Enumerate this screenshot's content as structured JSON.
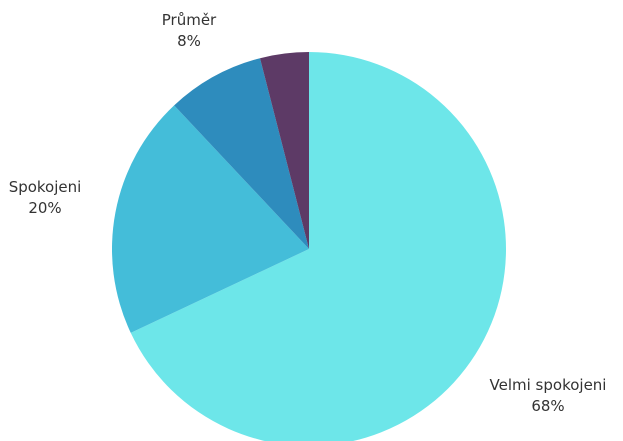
{
  "chart_data": {
    "type": "pie",
    "title": "",
    "start": "12-o-clock",
    "direction": "clockwise",
    "slices": [
      {
        "label": "Velmi spokojeni",
        "value": 68,
        "value_label": "68%",
        "color": "#6de6e9"
      },
      {
        "label": "Spokojeni",
        "value": 20,
        "value_label": "20%",
        "color": "#44bdd9"
      },
      {
        "label": "Průměr",
        "value": 8,
        "value_label": "8%",
        "color": "#2e8cbd"
      },
      {
        "label": "",
        "value": 4,
        "value_label": "",
        "color": "#5d3a66"
      }
    ]
  }
}
